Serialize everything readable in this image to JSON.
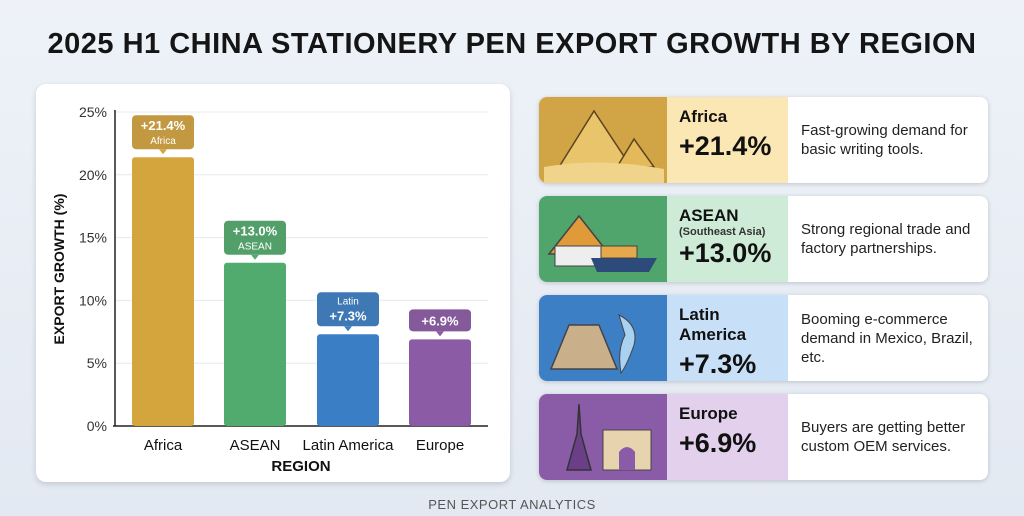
{
  "title": "2025 H1 CHINA STATIONERY PEN EXPORT GROWTH BY REGION",
  "footer": "PEN EXPORT ANALYTICS",
  "chart_data": {
    "type": "bar",
    "title": "",
    "xlabel": "REGION",
    "ylabel": "EXPORT GROWTH (%)",
    "ylim": [
      0,
      25
    ],
    "yticks": [
      "0%",
      "5%",
      "10%",
      "15%",
      "20%",
      "25%"
    ],
    "grid": true,
    "categories": [
      "Africa",
      "ASEAN",
      "Latin America",
      "Europe"
    ],
    "values": [
      21.4,
      13.0,
      7.3,
      6.9
    ],
    "colors": [
      "#d4a53c",
      "#52ab6e",
      "#3a7fc6",
      "#8c5ba6"
    ],
    "data_labels": [
      {
        "value": "+21.4%",
        "sub": "Africa",
        "sub_pos": "below"
      },
      {
        "value": "+13.0%",
        "sub": "ASEAN",
        "sub_pos": "below"
      },
      {
        "value": "+7.3%",
        "sub": "Latin",
        "sub_pos": "above"
      },
      {
        "value": "+6.9%",
        "sub": "",
        "sub_pos": "none"
      }
    ]
  },
  "cards": [
    {
      "region": "Africa",
      "sub": "",
      "value": "+21.4%",
      "desc": "Fast-growing demand for basic writing tools.",
      "icon": "pyramids-icon",
      "dark": "#d1a545",
      "light": "#fbe7b4"
    },
    {
      "region": "ASEAN",
      "sub": "(Southeast Asia)",
      "value": "+13.0%",
      "desc": "Strong regional trade and factory partnerships.",
      "icon": "temple-ship-icon",
      "dark": "#4fa56b",
      "light": "#cdebd6"
    },
    {
      "region": "Latin America",
      "sub": "",
      "value": "+7.3%",
      "desc": "Booming e-commerce demand in Mexico, Brazil, etc.",
      "icon": "mayan-pyramid-icon",
      "dark": "#3d7fc4",
      "light": "#c7e0f8"
    },
    {
      "region": "Europe",
      "sub": "",
      "value": "+6.9%",
      "desc": "Buyers are getting better custom OEM services.",
      "icon": "eiffel-arc-icon",
      "dark": "#8a5ca8",
      "light": "#e2d0ec"
    }
  ]
}
